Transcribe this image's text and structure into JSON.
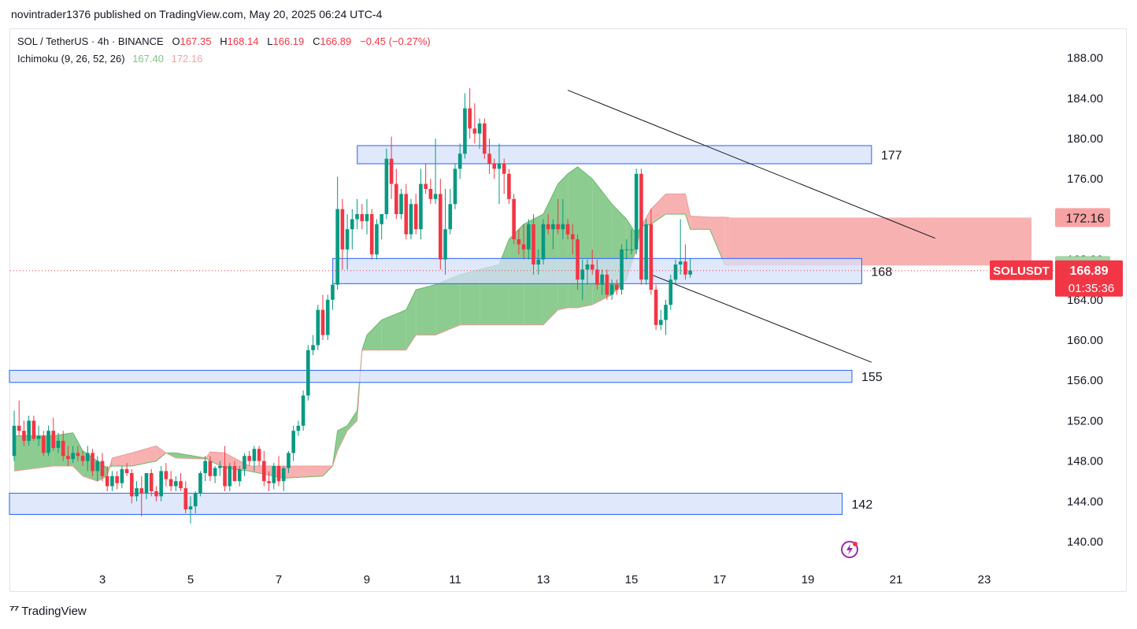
{
  "publish_line": "novintrader1376 published on TradingView.com, May 20, 2025 06:24 UTC-4",
  "legend": {
    "symbol": "SOL / TetherUS · 4h · BINANCE",
    "o_label": "O",
    "o": "167.35",
    "h_label": "H",
    "h": "168.14",
    "l_label": "L",
    "l": "166.19",
    "c_label": "C",
    "c": "166.89",
    "change": "−0.45 (−0.27%)",
    "indicator": "Ichimoku (9, 26, 52, 26)",
    "ichi_a": "167.40",
    "ichi_b": "172.16"
  },
  "footer": {
    "brand": "TradingView",
    "logo": "tv-logo"
  },
  "colors": {
    "up": "#089981",
    "down": "#f23645",
    "cloud_bull": "#81c784",
    "cloud_bear": "#f7a3a3",
    "zone_fill": "#d6e0fb",
    "zone_border": "#2962ff",
    "price_tag": "#f23645",
    "spanA_tag": "#a5d6a7",
    "spanB_tag": "#f7a3a3"
  },
  "chart_data": {
    "type": "candlestick",
    "symbol": "SOLUSDT",
    "timeframe": "4h",
    "ylim": [
      137.5,
      190
    ],
    "y_ticks": [
      "188.00",
      "184.00",
      "180.00",
      "176.00",
      "172.00",
      "168.00",
      "164.00",
      "160.00",
      "156.00",
      "152.00",
      "148.00",
      "144.00",
      "140.00"
    ],
    "x_ticks": [
      "3",
      "5",
      "7",
      "9",
      "11",
      "13",
      "15",
      "17",
      "19",
      "21",
      "23"
    ],
    "x_tick_bar_index": [
      18,
      36,
      54,
      72,
      90,
      108,
      126,
      144,
      162,
      180,
      198
    ],
    "last_price_label": "SOLUSDT",
    "last_price": "166.89",
    "countdown": "01:35:36",
    "span_a_label": "167.40",
    "span_b_label": "172.16",
    "candles": [
      {
        "o": 148.5,
        "h": 153.0,
        "l": 148.0,
        "c": 151.5
      },
      {
        "o": 151.5,
        "h": 154.0,
        "l": 150.5,
        "c": 151.0
      },
      {
        "o": 151.0,
        "h": 152.0,
        "l": 149.5,
        "c": 150.0
      },
      {
        "o": 150.0,
        "h": 152.5,
        "l": 149.5,
        "c": 152.0
      },
      {
        "o": 152.0,
        "h": 152.5,
        "l": 150.0,
        "c": 150.2
      },
      {
        "o": 150.2,
        "h": 151.5,
        "l": 149.5,
        "c": 150.5
      },
      {
        "o": 150.5,
        "h": 151.0,
        "l": 148.5,
        "c": 148.8
      },
      {
        "o": 148.8,
        "h": 151.5,
        "l": 148.5,
        "c": 151.0
      },
      {
        "o": 151.0,
        "h": 152.3,
        "l": 149.0,
        "c": 149.3
      },
      {
        "o": 149.3,
        "h": 150.8,
        "l": 148.8,
        "c": 150.0
      },
      {
        "o": 150.0,
        "h": 151.0,
        "l": 148.0,
        "c": 148.5
      },
      {
        "o": 148.5,
        "h": 149.5,
        "l": 147.5,
        "c": 148.2
      },
      {
        "o": 148.2,
        "h": 149.5,
        "l": 147.8,
        "c": 148.8
      },
      {
        "o": 148.8,
        "h": 149.5,
        "l": 148.0,
        "c": 148.5
      },
      {
        "o": 148.5,
        "h": 149.0,
        "l": 147.5,
        "c": 148.0
      },
      {
        "o": 148.0,
        "h": 149.5,
        "l": 147.0,
        "c": 148.8
      },
      {
        "o": 148.8,
        "h": 149.2,
        "l": 146.5,
        "c": 147.0
      },
      {
        "o": 147.0,
        "h": 148.5,
        "l": 146.0,
        "c": 148.0
      },
      {
        "o": 148.0,
        "h": 148.8,
        "l": 146.0,
        "c": 146.5
      },
      {
        "o": 146.5,
        "h": 147.5,
        "l": 145.0,
        "c": 145.5
      },
      {
        "o": 145.5,
        "h": 147.0,
        "l": 145.0,
        "c": 146.5
      },
      {
        "o": 146.5,
        "h": 147.0,
        "l": 145.2,
        "c": 145.8
      },
      {
        "o": 145.8,
        "h": 147.5,
        "l": 145.3,
        "c": 147.2
      },
      {
        "o": 147.2,
        "h": 147.8,
        "l": 146.5,
        "c": 146.8
      },
      {
        "o": 146.8,
        "h": 147.2,
        "l": 143.8,
        "c": 144.5
      },
      {
        "o": 144.5,
        "h": 146.0,
        "l": 144.0,
        "c": 145.3
      },
      {
        "o": 145.3,
        "h": 146.5,
        "l": 142.5,
        "c": 144.8
      },
      {
        "o": 144.8,
        "h": 146.5,
        "l": 144.2,
        "c": 146.8
      },
      {
        "o": 146.8,
        "h": 147.2,
        "l": 144.5,
        "c": 145.0
      },
      {
        "o": 145.0,
        "h": 145.5,
        "l": 144.0,
        "c": 144.5
      },
      {
        "o": 144.5,
        "h": 147.5,
        "l": 144.0,
        "c": 147.0
      },
      {
        "o": 147.0,
        "h": 147.8,
        "l": 145.5,
        "c": 146.2
      },
      {
        "o": 146.2,
        "h": 147.0,
        "l": 145.0,
        "c": 145.5
      },
      {
        "o": 145.5,
        "h": 146.5,
        "l": 145.0,
        "c": 146.0
      },
      {
        "o": 146.0,
        "h": 146.8,
        "l": 145.0,
        "c": 145.3
      },
      {
        "o": 145.3,
        "h": 146.0,
        "l": 142.8,
        "c": 143.2
      },
      {
        "o": 143.2,
        "h": 144.5,
        "l": 141.8,
        "c": 143.5
      },
      {
        "o": 143.5,
        "h": 145.0,
        "l": 142.8,
        "c": 144.8
      },
      {
        "o": 144.8,
        "h": 147.0,
        "l": 144.5,
        "c": 146.8
      },
      {
        "o": 146.8,
        "h": 148.5,
        "l": 146.0,
        "c": 148.0
      },
      {
        "o": 148.0,
        "h": 148.5,
        "l": 146.0,
        "c": 146.5
      },
      {
        "o": 146.5,
        "h": 147.5,
        "l": 145.8,
        "c": 147.3
      },
      {
        "o": 147.3,
        "h": 148.0,
        "l": 146.5,
        "c": 147.5
      },
      {
        "o": 147.5,
        "h": 149.5,
        "l": 145.0,
        "c": 145.5
      },
      {
        "o": 145.5,
        "h": 147.8,
        "l": 145.0,
        "c": 147.5
      },
      {
        "o": 147.5,
        "h": 148.0,
        "l": 146.0,
        "c": 146.0
      },
      {
        "o": 146.0,
        "h": 147.5,
        "l": 145.5,
        "c": 147.2
      },
      {
        "o": 147.2,
        "h": 148.8,
        "l": 146.5,
        "c": 148.5
      },
      {
        "o": 148.5,
        "h": 149.0,
        "l": 147.5,
        "c": 148.0
      },
      {
        "o": 148.0,
        "h": 149.5,
        "l": 147.0,
        "c": 149.2
      },
      {
        "o": 149.2,
        "h": 149.5,
        "l": 147.5,
        "c": 148.0
      },
      {
        "o": 148.0,
        "h": 149.0,
        "l": 145.5,
        "c": 146.0
      },
      {
        "o": 146.0,
        "h": 147.0,
        "l": 145.0,
        "c": 145.8
      },
      {
        "o": 145.8,
        "h": 147.8,
        "l": 145.2,
        "c": 147.5
      },
      {
        "o": 147.5,
        "h": 148.5,
        "l": 145.5,
        "c": 146.0
      },
      {
        "o": 146.0,
        "h": 147.5,
        "l": 145.0,
        "c": 147.3
      },
      {
        "o": 147.3,
        "h": 149.0,
        "l": 146.8,
        "c": 148.8
      },
      {
        "o": 148.8,
        "h": 151.5,
        "l": 148.0,
        "c": 151.0
      },
      {
        "o": 151.0,
        "h": 152.0,
        "l": 150.5,
        "c": 151.5
      },
      {
        "o": 151.5,
        "h": 155.0,
        "l": 151.0,
        "c": 154.5
      },
      {
        "o": 154.5,
        "h": 159.5,
        "l": 154.0,
        "c": 159.0
      },
      {
        "o": 159.0,
        "h": 160.5,
        "l": 158.5,
        "c": 159.5
      },
      {
        "o": 159.5,
        "h": 163.5,
        "l": 159.0,
        "c": 163.0
      },
      {
        "o": 163.0,
        "h": 164.5,
        "l": 160.0,
        "c": 160.5
      },
      {
        "o": 160.5,
        "h": 164.5,
        "l": 160.0,
        "c": 164.0
      },
      {
        "o": 164.0,
        "h": 166.0,
        "l": 163.0,
        "c": 165.5
      },
      {
        "o": 165.5,
        "h": 176.2,
        "l": 165.0,
        "c": 173.0
      },
      {
        "o": 173.0,
        "h": 174.0,
        "l": 167.0,
        "c": 169.0
      },
      {
        "o": 169.0,
        "h": 172.5,
        "l": 167.0,
        "c": 171.0
      },
      {
        "o": 171.0,
        "h": 173.0,
        "l": 169.0,
        "c": 172.0
      },
      {
        "o": 172.0,
        "h": 174.0,
        "l": 171.0,
        "c": 172.5
      },
      {
        "o": 172.5,
        "h": 173.5,
        "l": 171.0,
        "c": 171.8
      },
      {
        "o": 171.8,
        "h": 174.0,
        "l": 170.5,
        "c": 172.5
      },
      {
        "o": 172.5,
        "h": 173.0,
        "l": 168.0,
        "c": 168.5
      },
      {
        "o": 168.5,
        "h": 172.0,
        "l": 168.0,
        "c": 171.5
      },
      {
        "o": 171.5,
        "h": 172.5,
        "l": 170.0,
        "c": 172.5
      },
      {
        "o": 172.5,
        "h": 179.0,
        "l": 172.0,
        "c": 178.0
      },
      {
        "o": 178.0,
        "h": 180.2,
        "l": 174.0,
        "c": 175.5
      },
      {
        "o": 175.5,
        "h": 177.0,
        "l": 172.0,
        "c": 172.5
      },
      {
        "o": 172.5,
        "h": 175.0,
        "l": 172.0,
        "c": 174.5
      },
      {
        "o": 174.5,
        "h": 175.5,
        "l": 170.0,
        "c": 170.5
      },
      {
        "o": 170.5,
        "h": 174.0,
        "l": 170.0,
        "c": 173.5
      },
      {
        "o": 173.5,
        "h": 174.5,
        "l": 170.5,
        "c": 171.0
      },
      {
        "o": 171.0,
        "h": 177.0,
        "l": 170.0,
        "c": 175.5
      },
      {
        "o": 175.5,
        "h": 177.5,
        "l": 174.5,
        "c": 175.0
      },
      {
        "o": 175.0,
        "h": 176.0,
        "l": 173.5,
        "c": 174.0
      },
      {
        "o": 174.0,
        "h": 180.0,
        "l": 173.5,
        "c": 174.5
      },
      {
        "o": 174.5,
        "h": 176.0,
        "l": 167.0,
        "c": 168.0
      },
      {
        "o": 168.0,
        "h": 175.0,
        "l": 166.5,
        "c": 171.0
      },
      {
        "o": 171.0,
        "h": 175.0,
        "l": 170.5,
        "c": 173.5
      },
      {
        "o": 173.5,
        "h": 177.5,
        "l": 173.0,
        "c": 177.0
      },
      {
        "o": 177.0,
        "h": 179.5,
        "l": 176.0,
        "c": 178.5
      },
      {
        "o": 178.5,
        "h": 184.5,
        "l": 178.0,
        "c": 183.0
      },
      {
        "o": 183.0,
        "h": 185.0,
        "l": 180.0,
        "c": 181.0
      },
      {
        "o": 181.0,
        "h": 183.5,
        "l": 179.5,
        "c": 180.5
      },
      {
        "o": 180.5,
        "h": 182.0,
        "l": 179.0,
        "c": 181.5
      },
      {
        "o": 181.5,
        "h": 182.0,
        "l": 178.0,
        "c": 178.5
      },
      {
        "o": 178.5,
        "h": 180.0,
        "l": 176.5,
        "c": 177.5
      },
      {
        "o": 177.5,
        "h": 178.0,
        "l": 176.0,
        "c": 177.0
      },
      {
        "o": 177.0,
        "h": 179.5,
        "l": 173.5,
        "c": 177.5
      },
      {
        "o": 177.5,
        "h": 178.0,
        "l": 174.5,
        "c": 176.5
      },
      {
        "o": 176.5,
        "h": 177.0,
        "l": 173.5,
        "c": 174.0
      },
      {
        "o": 174.0,
        "h": 174.5,
        "l": 169.5,
        "c": 170.0
      },
      {
        "o": 170.0,
        "h": 171.0,
        "l": 168.5,
        "c": 169.5
      },
      {
        "o": 169.5,
        "h": 171.5,
        "l": 168.0,
        "c": 169.0
      },
      {
        "o": 169.0,
        "h": 172.0,
        "l": 168.0,
        "c": 171.5
      },
      {
        "o": 171.5,
        "h": 172.5,
        "l": 166.5,
        "c": 167.5
      },
      {
        "o": 167.5,
        "h": 169.0,
        "l": 166.5,
        "c": 168.0
      },
      {
        "o": 168.0,
        "h": 172.0,
        "l": 167.5,
        "c": 171.5
      },
      {
        "o": 171.5,
        "h": 172.5,
        "l": 170.5,
        "c": 171.0
      },
      {
        "o": 171.0,
        "h": 172.0,
        "l": 169.0,
        "c": 171.5
      },
      {
        "o": 171.5,
        "h": 174.0,
        "l": 170.5,
        "c": 171.0
      },
      {
        "o": 171.0,
        "h": 174.0,
        "l": 170.0,
        "c": 171.5
      },
      {
        "o": 171.5,
        "h": 172.0,
        "l": 170.0,
        "c": 170.5
      },
      {
        "o": 170.5,
        "h": 171.5,
        "l": 168.5,
        "c": 170.0
      },
      {
        "o": 170.0,
        "h": 170.5,
        "l": 165.0,
        "c": 166.0
      },
      {
        "o": 166.0,
        "h": 168.0,
        "l": 164.0,
        "c": 167.0
      },
      {
        "o": 167.0,
        "h": 168.0,
        "l": 165.5,
        "c": 167.5
      },
      {
        "o": 167.5,
        "h": 169.0,
        "l": 166.5,
        "c": 167.0
      },
      {
        "o": 167.0,
        "h": 168.0,
        "l": 165.0,
        "c": 165.5
      },
      {
        "o": 165.5,
        "h": 167.0,
        "l": 164.5,
        "c": 166.5
      },
      {
        "o": 166.5,
        "h": 167.0,
        "l": 164.0,
        "c": 164.5
      },
      {
        "o": 164.5,
        "h": 166.0,
        "l": 164.0,
        "c": 165.5
      },
      {
        "o": 165.5,
        "h": 166.0,
        "l": 164.5,
        "c": 165.0
      },
      {
        "o": 165.0,
        "h": 169.5,
        "l": 164.5,
        "c": 169.0
      },
      {
        "o": 169.0,
        "h": 170.0,
        "l": 168.0,
        "c": 169.0
      },
      {
        "o": 169.0,
        "h": 171.0,
        "l": 168.5,
        "c": 169.0
      },
      {
        "o": 169.0,
        "h": 177.0,
        "l": 168.5,
        "c": 176.5
      },
      {
        "o": 176.5,
        "h": 177.0,
        "l": 165.5,
        "c": 166.0
      },
      {
        "o": 166.0,
        "h": 172.0,
        "l": 165.5,
        "c": 171.5
      },
      {
        "o": 171.5,
        "h": 173.0,
        "l": 164.5,
        "c": 165.0
      },
      {
        "o": 165.0,
        "h": 165.5,
        "l": 161.0,
        "c": 161.5
      },
      {
        "o": 161.5,
        "h": 163.0,
        "l": 161.0,
        "c": 162.0
      },
      {
        "o": 162.0,
        "h": 164.0,
        "l": 160.5,
        "c": 163.5
      },
      {
        "o": 163.5,
        "h": 166.5,
        "l": 163.0,
        "c": 166.0
      },
      {
        "o": 166.0,
        "h": 168.0,
        "l": 165.5,
        "c": 167.5
      },
      {
        "o": 167.5,
        "h": 172.0,
        "l": 166.5,
        "c": 167.8
      },
      {
        "o": 167.8,
        "h": 169.5,
        "l": 166.0,
        "c": 166.5
      },
      {
        "o": 166.5,
        "h": 168.1,
        "l": 166.2,
        "c": 166.9
      }
    ],
    "cloud": [
      {
        "i": 0,
        "a": 150.5,
        "b": 147.0
      },
      {
        "i": 8,
        "a": 150.5,
        "b": 147.5
      },
      {
        "i": 12,
        "a": 150.8,
        "b": 147.5
      },
      {
        "i": 14,
        "a": 149.0,
        "b": 146.5
      },
      {
        "i": 17,
        "a": 148.0,
        "b": 146.0
      },
      {
        "i": 19,
        "a": 147.3,
        "b": 146.5
      },
      {
        "i": 20,
        "a": 147.5,
        "b": 148.3
      },
      {
        "i": 24,
        "a": 147.5,
        "b": 148.8
      },
      {
        "i": 29,
        "a": 148.0,
        "b": 149.5
      },
      {
        "i": 31,
        "a": 148.8,
        "b": 148.8
      },
      {
        "i": 33,
        "a": 148.8,
        "b": 148.3
      },
      {
        "i": 39,
        "a": 148.3,
        "b": 148.2
      },
      {
        "i": 40,
        "a": 148.0,
        "b": 148.9
      },
      {
        "i": 43,
        "a": 147.3,
        "b": 148.8
      },
      {
        "i": 48,
        "a": 147.0,
        "b": 147.5
      },
      {
        "i": 55,
        "a": 146.3,
        "b": 147.5
      },
      {
        "i": 63,
        "a": 146.5,
        "b": 147.5
      },
      {
        "i": 65,
        "a": 147.5,
        "b": 147.5
      },
      {
        "i": 66,
        "a": 151.0,
        "b": 149.0
      },
      {
        "i": 68,
        "a": 151.5,
        "b": 151.0
      },
      {
        "i": 70,
        "a": 153.0,
        "b": 152.0
      },
      {
        "i": 71,
        "a": 159.0,
        "b": 159.0
      },
      {
        "i": 72,
        "a": 160.5,
        "b": 159.0
      },
      {
        "i": 75,
        "a": 162.0,
        "b": 159.0
      },
      {
        "i": 80,
        "a": 163.0,
        "b": 159.0
      },
      {
        "i": 82,
        "a": 165.0,
        "b": 160.5
      },
      {
        "i": 86,
        "a": 165.5,
        "b": 160.5
      },
      {
        "i": 91,
        "a": 166.5,
        "b": 161.5
      },
      {
        "i": 95,
        "a": 167.0,
        "b": 161.5
      },
      {
        "i": 99,
        "a": 167.5,
        "b": 161.5
      },
      {
        "i": 101,
        "a": 170.0,
        "b": 161.5
      },
      {
        "i": 104,
        "a": 171.5,
        "b": 161.5
      },
      {
        "i": 108,
        "a": 172.5,
        "b": 161.5
      },
      {
        "i": 111,
        "a": 175.5,
        "b": 163.0
      },
      {
        "i": 113,
        "a": 176.5,
        "b": 163.2
      },
      {
        "i": 115,
        "a": 177.2,
        "b": 163.2
      },
      {
        "i": 118,
        "a": 176.0,
        "b": 163.5
      },
      {
        "i": 122,
        "a": 173.5,
        "b": 164.5
      },
      {
        "i": 125,
        "a": 172.0,
        "b": 166.0
      },
      {
        "i": 127,
        "a": 170.5,
        "b": 169.0
      },
      {
        "i": 128,
        "a": 171.3,
        "b": 171.3
      },
      {
        "i": 130,
        "a": 171.5,
        "b": 173.0
      },
      {
        "i": 133,
        "a": 172.5,
        "b": 174.5
      },
      {
        "i": 137,
        "a": 172.5,
        "b": 174.5
      },
      {
        "i": 138,
        "a": 171.0,
        "b": 172.3
      },
      {
        "i": 142,
        "a": 171.0,
        "b": 172.2
      },
      {
        "i": 145,
        "a": 167.5,
        "b": 172.2
      },
      {
        "i": 146,
        "a": 167.4,
        "b": 172.16
      }
    ],
    "cloud_last_bar": 146,
    "zones": [
      {
        "label": "177",
        "y1": 177.5,
        "y2": 179.3,
        "i1": 71,
        "i2": 175
      },
      {
        "label": "168",
        "y1": 165.6,
        "y2": 168.1,
        "i1": 66,
        "i2": 173
      },
      {
        "label": "155",
        "y1": 155.8,
        "y2": 157.0,
        "i1": 0,
        "i2": 171
      },
      {
        "label": "142",
        "y1": 142.7,
        "y2": 144.8,
        "i1": 0,
        "i2": 169
      }
    ],
    "trendlines": [
      {
        "from": [
          113,
          184.8
        ],
        "to": [
          188,
          170.1
        ]
      },
      {
        "from": [
          130,
          166.5
        ],
        "to": [
          175,
          157.8
        ]
      }
    ]
  }
}
